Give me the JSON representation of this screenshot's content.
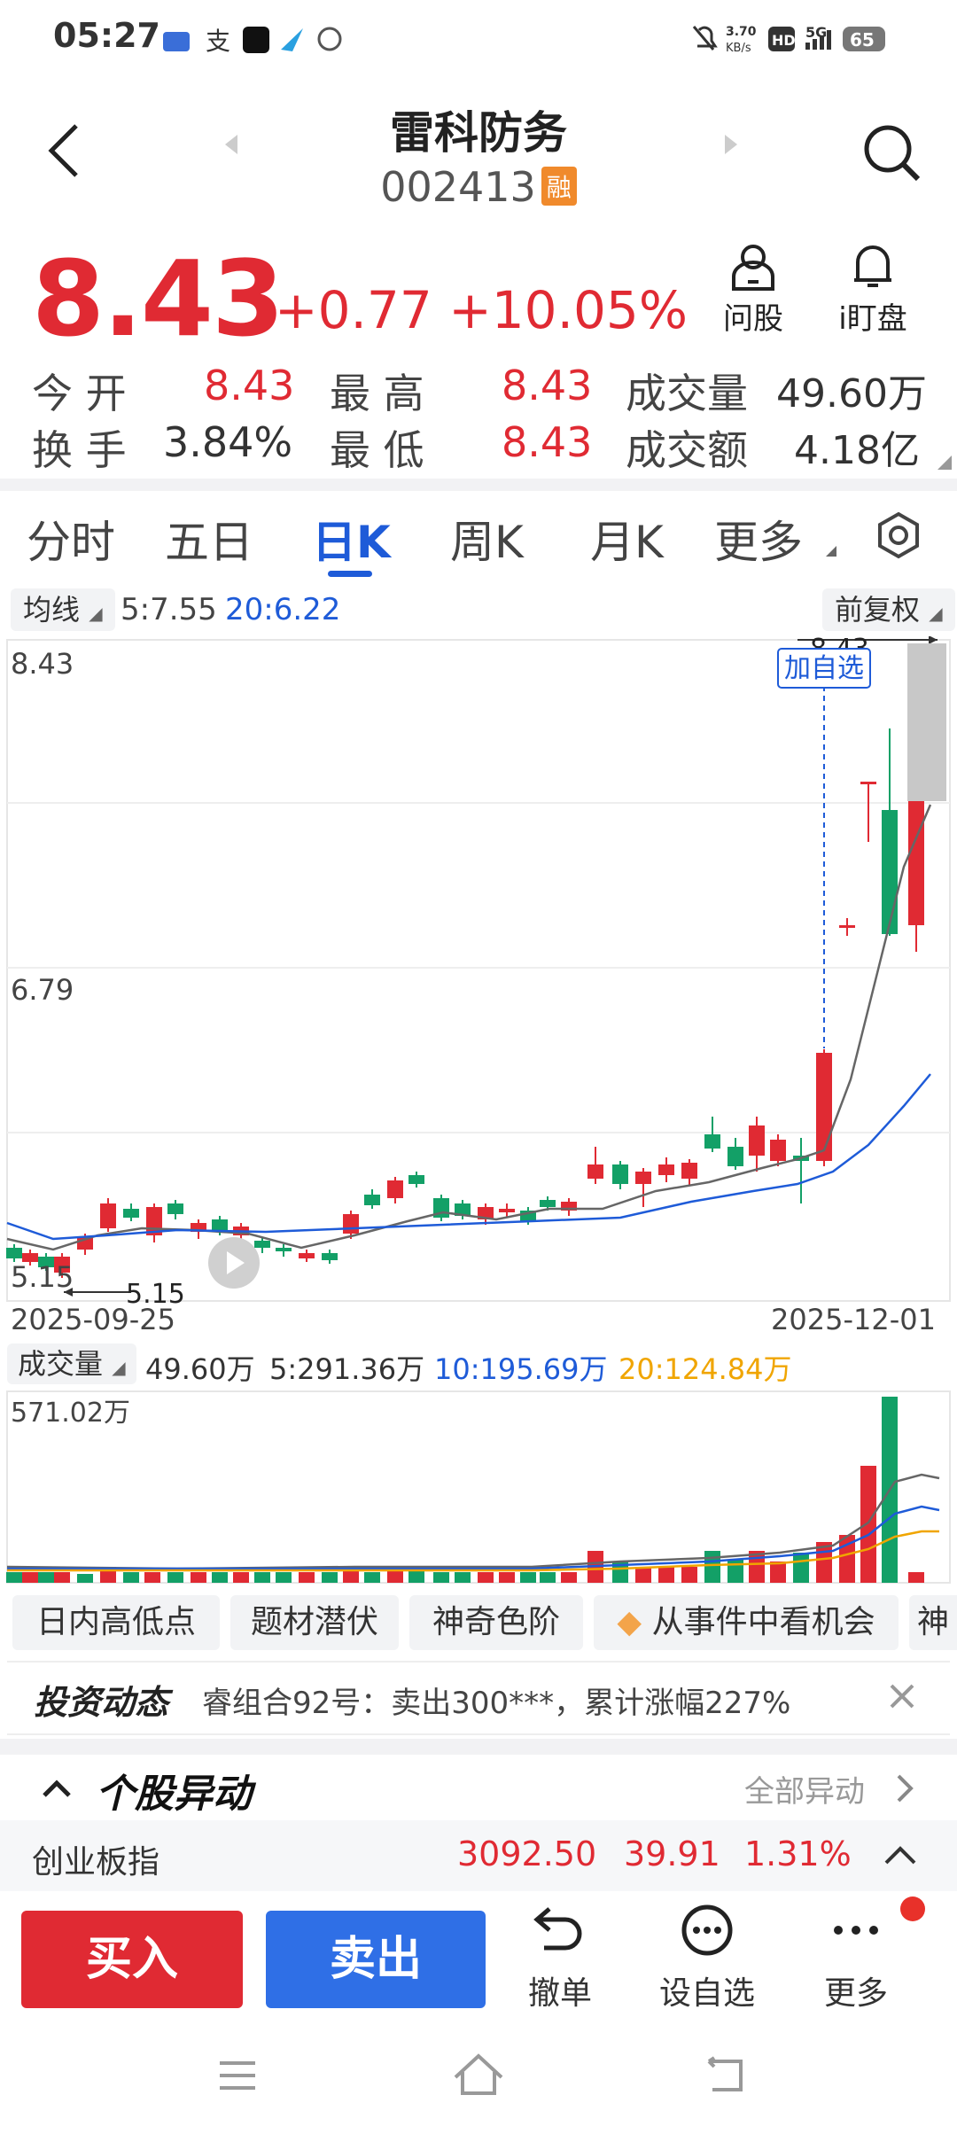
{
  "status_bar": {
    "time": "05:27",
    "net_speed": "3.70\nKB/s",
    "hd": "HD",
    "signal": "5G",
    "battery": "65"
  },
  "header": {
    "title": "雷科防务",
    "code": "002413",
    "margin_badge": "融"
  },
  "quote": {
    "price": "8.43",
    "change": "+0.77",
    "change_pct": "+10.05%",
    "actions": [
      {
        "label": "问股",
        "icon": "ask-icon"
      },
      {
        "label": "i盯盘",
        "icon": "bell-icon"
      }
    ],
    "stats": [
      {
        "label": "今 开",
        "value": "8.43",
        "color": "red"
      },
      {
        "label": "最 高",
        "value": "8.43",
        "color": "red"
      },
      {
        "label": "成交量",
        "value": "49.60万",
        "color": "dark"
      },
      {
        "label": "换 手",
        "value": "3.84%",
        "color": "dark"
      },
      {
        "label": "最 低",
        "value": "8.43",
        "color": "red"
      },
      {
        "label": "成交额",
        "value": "4.18亿",
        "color": "dark"
      }
    ]
  },
  "tabs": [
    {
      "label": "分时"
    },
    {
      "label": "五日"
    },
    {
      "label": "日K",
      "active": true
    },
    {
      "label": "周K"
    },
    {
      "label": "月K"
    },
    {
      "label": "更多"
    }
  ],
  "ma_bar": {
    "selector": "均线",
    "ma5": "5:7.55",
    "ma20": "20:6.22",
    "adjust": "前复权"
  },
  "kline": {
    "price_labels": {
      "top": "8.43",
      "mid": "6.79",
      "bottom": "5.15"
    },
    "high_marker": "8.43",
    "low_marker": "5.15",
    "add_watch": "加自选",
    "date_start": "2025-09-25",
    "date_end": "2025-12-01"
  },
  "volume": {
    "selector": "成交量",
    "current": "49.60万",
    "ma5": "5:291.36万",
    "ma10": "10:195.69万",
    "ma20": "20:124.84万",
    "max_label": "571.02万"
  },
  "chips": [
    "日内高低点",
    "题材潜伏",
    "神奇色阶",
    "从事件中看机会",
    "神"
  ],
  "news": {
    "brand": "投资动态",
    "text": "睿组合92号：卖出300***，累计涨幅227%"
  },
  "anomaly": {
    "title": "个股异动",
    "all": "全部异动"
  },
  "index": {
    "name": "创业板指",
    "value": "3092.50",
    "change": "39.91",
    "pct": "1.31%"
  },
  "bottom_bar": {
    "buy": "买入",
    "sell": "卖出",
    "cancel": "撤单",
    "watch": "设自选",
    "more": "更多"
  },
  "colors": {
    "up": "#e02a33",
    "down": "#13a067",
    "accent": "#1e5bd8",
    "ma10": "#1e5bd8",
    "ma20": "#f0a500"
  }
}
